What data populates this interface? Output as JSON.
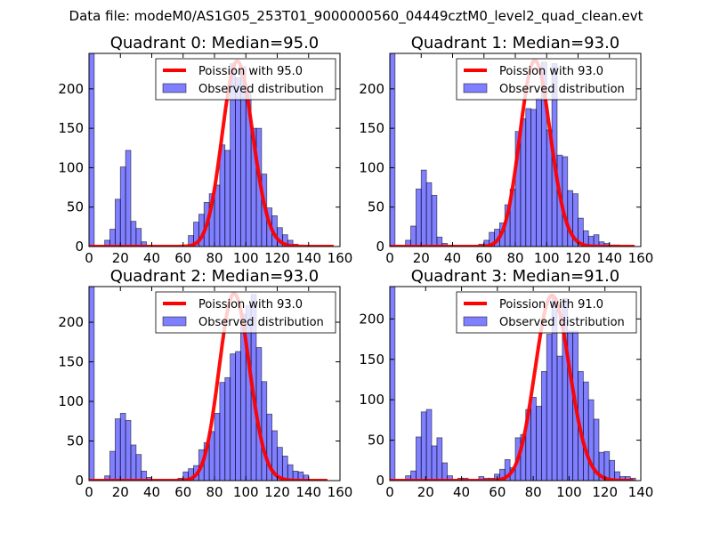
{
  "suptitle": "Data file: modeM0/AS1G05_253T01_9000000560_04449cztM0_level2_quad_clean.evt",
  "chart_data": [
    {
      "type": "bar",
      "title": "Quadrant 0: Median=95.0",
      "xlim": [
        0,
        160
      ],
      "ylim": [
        0,
        245
      ],
      "xticks": [
        0,
        20,
        40,
        60,
        80,
        100,
        120,
        140,
        160
      ],
      "yticks": [
        0,
        50,
        100,
        150,
        200
      ],
      "bin_width": 3.333,
      "bin_starts": [
        0,
        10,
        13.33,
        16.67,
        20,
        23.33,
        26.67,
        30,
        33.33,
        63.33,
        66.67,
        70,
        73.33,
        76.67,
        80,
        83.33,
        86.67,
        90,
        93.33,
        96.67,
        100,
        103.33,
        106.67,
        110,
        113.33,
        116.67,
        120,
        123.33,
        126.67,
        130
      ],
      "values": [
        245,
        8,
        22,
        60,
        101,
        122,
        32,
        23,
        6,
        14,
        31,
        41,
        56,
        67,
        78,
        129,
        122,
        232,
        214,
        228,
        196,
        150,
        150,
        92,
        49,
        39,
        24,
        15,
        8,
        3
      ],
      "legend": {
        "position": "upper right",
        "entries": [
          "Poission with 95.0",
          "Observed distribution"
        ]
      },
      "poisson_mean": 95.0,
      "poisson_peak": 235,
      "poisson_xrange": [
        0,
        156
      ]
    },
    {
      "type": "bar",
      "title": "Quadrant 1: Median=93.0",
      "xlim": [
        0,
        160
      ],
      "ylim": [
        0,
        245
      ],
      "xticks": [
        0,
        20,
        40,
        60,
        80,
        100,
        120,
        140,
        160
      ],
      "yticks": [
        0,
        50,
        100,
        150,
        200
      ],
      "bin_width": 3.333,
      "bin_starts": [
        0,
        10,
        13.33,
        16.67,
        20,
        23.33,
        26.67,
        30,
        33.33,
        56.67,
        60,
        63.33,
        66.67,
        70,
        73.33,
        76.67,
        80,
        83.33,
        86.67,
        90,
        93.33,
        96.67,
        100,
        103.33,
        106.67,
        110,
        113.33,
        116.67,
        120,
        123.33,
        126.67,
        130,
        133.33,
        136.67,
        140,
        143.33
      ],
      "values": [
        245,
        8,
        26,
        73,
        97,
        81,
        65,
        12,
        4,
        3,
        8,
        18,
        22,
        30,
        53,
        73,
        146,
        162,
        175,
        174,
        188,
        234,
        148,
        232,
        116,
        114,
        71,
        67,
        36,
        20,
        13,
        15,
        6,
        4,
        2,
        2
      ],
      "legend": {
        "position": "upper right",
        "entries": [
          "Poission with 93.0",
          "Observed distribution"
        ]
      },
      "poisson_mean": 93.0,
      "poisson_peak": 236,
      "poisson_xrange": [
        0,
        156
      ]
    },
    {
      "type": "bar",
      "title": "Quadrant 2: Median=93.0",
      "xlim": [
        0,
        160
      ],
      "ylim": [
        0,
        245
      ],
      "xticks": [
        0,
        20,
        40,
        60,
        80,
        100,
        120,
        140,
        160
      ],
      "yticks": [
        0,
        50,
        100,
        150,
        200
      ],
      "bin_width": 3.333,
      "bin_starts": [
        0,
        10,
        13.33,
        16.67,
        20,
        23.33,
        26.67,
        30,
        33.33,
        36.67,
        56.67,
        60,
        63.33,
        66.67,
        70,
        73.33,
        76.67,
        80,
        83.33,
        86.67,
        90,
        93.33,
        96.67,
        100,
        103.33,
        106.67,
        110,
        113.33,
        116.67,
        120,
        123.33,
        126.67,
        130,
        133.33,
        136.67
      ],
      "values": [
        245,
        6,
        37,
        78,
        85,
        76,
        45,
        33,
        12,
        4,
        3,
        11,
        15,
        19,
        39,
        48,
        62,
        85,
        124,
        130,
        160,
        163,
        210,
        221,
        235,
        168,
        125,
        84,
        63,
        42,
        31,
        20,
        12,
        11,
        7
      ],
      "legend": {
        "position": "upper right",
        "entries": [
          "Poission with 93.0",
          "Observed distribution"
        ]
      },
      "poisson_mean": 93.0,
      "poisson_peak": 236,
      "poisson_xrange": [
        0,
        152
      ]
    },
    {
      "type": "bar",
      "title": "Quadrant 3: Median=91.0",
      "xlim": [
        0,
        140
      ],
      "ylim": [
        0,
        240
      ],
      "xticks": [
        0,
        20,
        40,
        60,
        80,
        100,
        120,
        140
      ],
      "yticks": [
        0,
        50,
        100,
        150,
        200
      ],
      "bin_width": 2.917,
      "bin_starts": [
        0,
        8.75,
        11.67,
        14.58,
        17.5,
        20.42,
        23.33,
        26.25,
        29.17,
        32.08,
        37.92,
        40.83,
        49.58,
        52.5,
        55.42,
        58.33,
        61.25,
        64.17,
        67.08,
        70,
        72.92,
        75.83,
        78.75,
        81.67,
        84.58,
        87.5,
        90.42,
        93.33,
        96.25,
        99.17,
        102.08,
        105,
        107.92,
        110.83,
        113.75,
        116.67,
        119.58,
        122.5,
        125.42,
        128.33,
        131.25,
        134.17
      ],
      "values": [
        240,
        6,
        12,
        54,
        85,
        88,
        43,
        53,
        22,
        6,
        3,
        3,
        5,
        3,
        3,
        8,
        14,
        26,
        16,
        53,
        57,
        88,
        103,
        92,
        135,
        181,
        226,
        154,
        225,
        185,
        185,
        135,
        122,
        100,
        76,
        35,
        36,
        25,
        11,
        5,
        5,
        3
      ],
      "legend": {
        "position": "upper right",
        "entries": [
          "Poission with 91.0",
          "Observed distribution"
        ]
      },
      "poisson_mean": 91.0,
      "poisson_peak": 229,
      "poisson_xrange": [
        0,
        136
      ]
    }
  ]
}
